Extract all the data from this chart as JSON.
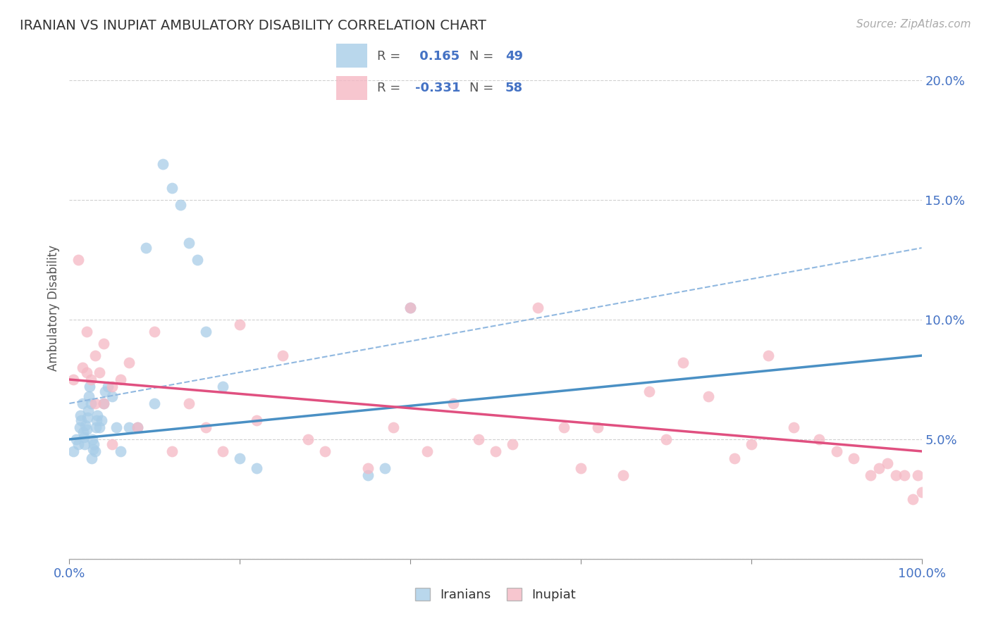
{
  "title": "IRANIAN VS INUPIAT AMBULATORY DISABILITY CORRELATION CHART",
  "source_text": "Source: ZipAtlas.com",
  "ylabel": "Ambulatory Disability",
  "xlim": [
    0.0,
    100.0
  ],
  "ylim": [
    0.0,
    21.0
  ],
  "yticks": [
    0.0,
    5.0,
    10.0,
    15.0,
    20.0
  ],
  "ytick_labels": [
    "",
    "5.0%",
    "10.0%",
    "15.0%",
    "20.0%"
  ],
  "xticks": [
    0,
    20,
    40,
    60,
    80,
    100
  ],
  "xtick_labels": [
    "0.0%",
    "",
    "",
    "",
    "",
    "100.0%"
  ],
  "r_iranian": 0.165,
  "n_iranian": 49,
  "r_inupiat": -0.331,
  "n_inupiat": 58,
  "color_iranian": "#a8cde8",
  "color_inupiat": "#f5b8c4",
  "color_trendline_iranian": "#4a90c4",
  "color_trendline_inupiat": "#e05080",
  "color_trendline_dashed": "#90b8e0",
  "background_color": "#ffffff",
  "grid_color": "#d0d0d0",
  "tick_color": "#4472c4",
  "iranian_trend_start": 5.0,
  "iranian_trend_end": 8.5,
  "inupiat_trend_start": 7.5,
  "inupiat_trend_end": 4.5,
  "dashed_trend_start": 6.5,
  "dashed_trend_end": 13.0,
  "iranians_x": [
    0.5,
    0.8,
    1.0,
    1.2,
    1.3,
    1.4,
    1.5,
    1.6,
    1.7,
    1.8,
    1.9,
    2.0,
    2.1,
    2.2,
    2.3,
    2.4,
    2.5,
    2.6,
    2.7,
    2.8,
    2.9,
    3.0,
    3.1,
    3.2,
    3.3,
    3.5,
    3.8,
    4.0,
    4.2,
    4.5,
    5.0,
    5.5,
    6.0,
    7.0,
    8.0,
    9.0,
    10.0,
    11.0,
    12.0,
    13.0,
    14.0,
    15.0,
    16.0,
    18.0,
    20.0,
    22.0,
    35.0,
    37.0,
    40.0
  ],
  "iranians_y": [
    4.5,
    5.0,
    4.8,
    5.5,
    6.0,
    5.8,
    6.5,
    5.3,
    5.1,
    4.8,
    5.6,
    5.4,
    5.9,
    6.2,
    6.8,
    7.2,
    6.5,
    4.2,
    5.0,
    4.6,
    4.8,
    4.5,
    5.5,
    5.8,
    6.0,
    5.5,
    5.8,
    6.5,
    7.0,
    7.2,
    6.8,
    5.5,
    4.5,
    5.5,
    5.5,
    13.0,
    6.5,
    16.5,
    15.5,
    14.8,
    13.2,
    12.5,
    9.5,
    7.2,
    4.2,
    3.8,
    3.5,
    3.8,
    10.5
  ],
  "inupiat_x": [
    0.5,
    1.0,
    1.5,
    2.0,
    2.5,
    3.0,
    3.5,
    4.0,
    5.0,
    6.0,
    7.0,
    8.0,
    10.0,
    12.0,
    14.0,
    16.0,
    18.0,
    20.0,
    22.0,
    25.0,
    28.0,
    30.0,
    35.0,
    38.0,
    40.0,
    42.0,
    45.0,
    48.0,
    50.0,
    52.0,
    55.0,
    58.0,
    60.0,
    62.0,
    65.0,
    68.0,
    70.0,
    72.0,
    75.0,
    78.0,
    80.0,
    82.0,
    85.0,
    88.0,
    90.0,
    92.0,
    94.0,
    95.0,
    96.0,
    97.0,
    98.0,
    99.0,
    99.5,
    100.0,
    2.0,
    3.0,
    4.0,
    5.0
  ],
  "inupiat_y": [
    7.5,
    12.5,
    8.0,
    9.5,
    7.5,
    8.5,
    7.8,
    6.5,
    7.2,
    7.5,
    8.2,
    5.5,
    9.5,
    4.5,
    6.5,
    5.5,
    4.5,
    9.8,
    5.8,
    8.5,
    5.0,
    4.5,
    3.8,
    5.5,
    10.5,
    4.5,
    6.5,
    5.0,
    4.5,
    4.8,
    10.5,
    5.5,
    3.8,
    5.5,
    3.5,
    7.0,
    5.0,
    8.2,
    6.8,
    4.2,
    4.8,
    8.5,
    5.5,
    5.0,
    4.5,
    4.2,
    3.5,
    3.8,
    4.0,
    3.5,
    3.5,
    2.5,
    3.5,
    2.8,
    7.8,
    6.5,
    9.0,
    4.8
  ]
}
